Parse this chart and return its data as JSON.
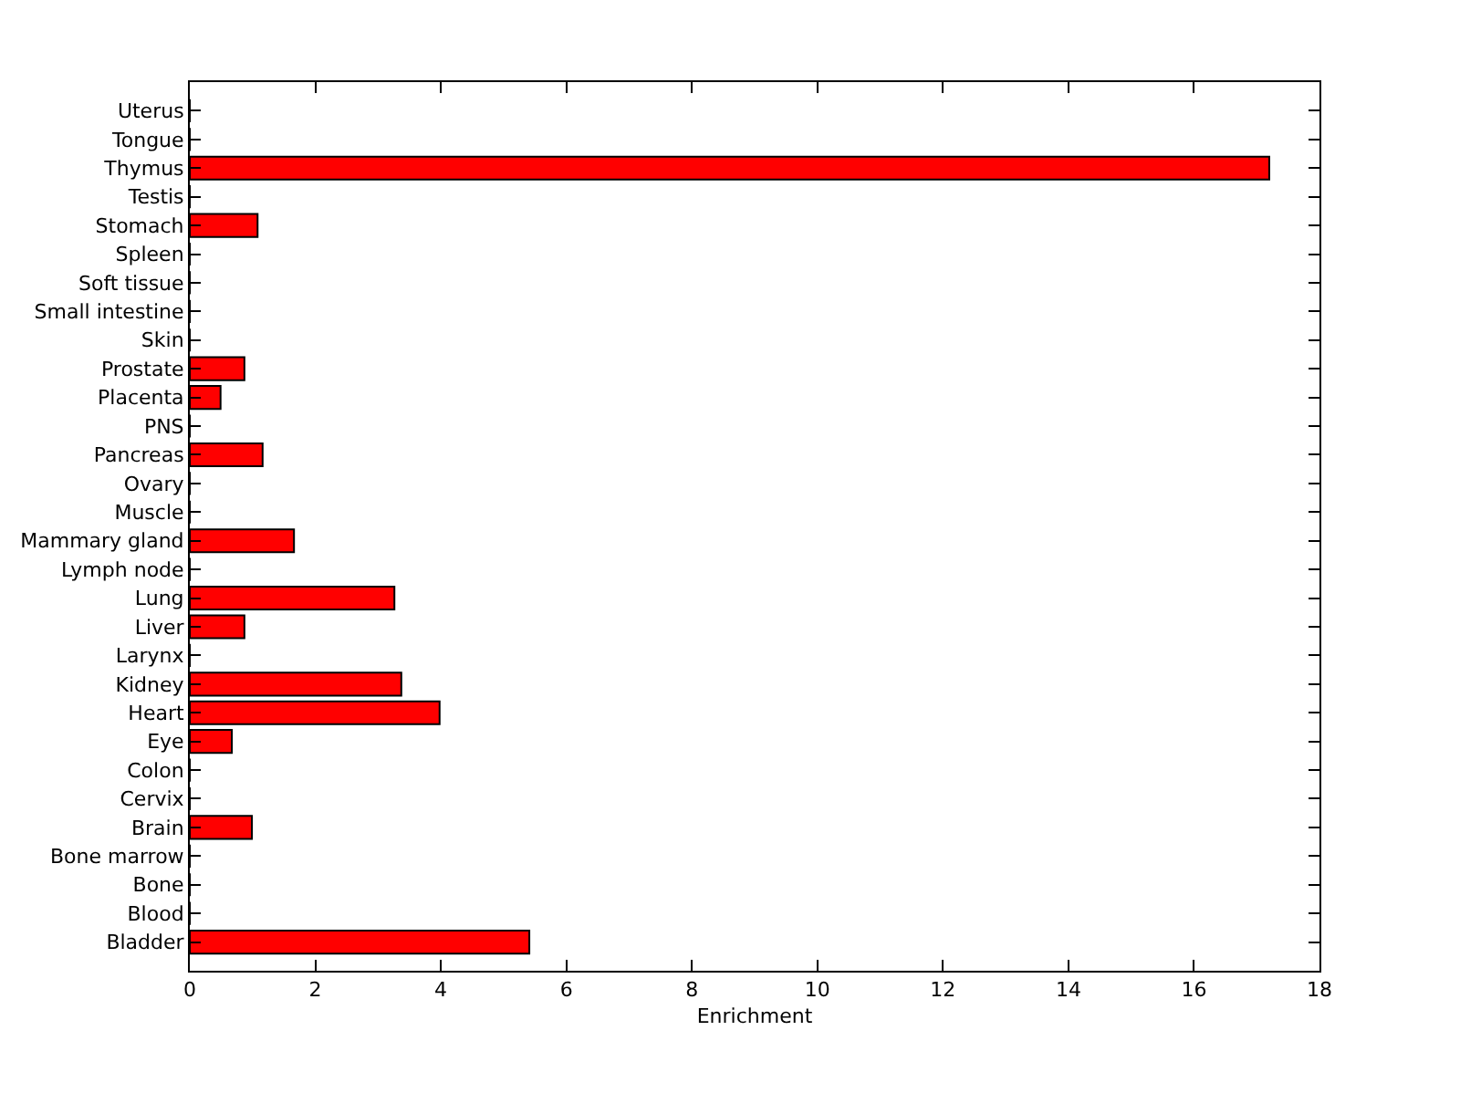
{
  "chart_data": {
    "type": "bar",
    "orientation": "horizontal",
    "xlabel": "Enrichment",
    "categories": [
      "Uterus",
      "Tongue",
      "Thymus",
      "Testis",
      "Stomach",
      "Spleen",
      "Soft tissue",
      "Small intestine",
      "Skin",
      "Prostate",
      "Placenta",
      "PNS",
      "Pancreas",
      "Ovary",
      "Muscle",
      "Mammary gland",
      "Lymph node",
      "Lung",
      "Liver",
      "Larynx",
      "Kidney",
      "Heart",
      "Eye",
      "Colon",
      "Cervix",
      "Brain",
      "Bone marrow",
      "Bone",
      "Blood",
      "Bladder"
    ],
    "values": [
      0,
      0,
      17.2,
      0,
      1.08,
      0,
      0,
      0,
      0,
      0.87,
      0.49,
      0,
      1.16,
      0,
      0,
      1.66,
      0,
      3.26,
      0.87,
      0,
      3.37,
      3.98,
      0.67,
      0,
      0,
      0.99,
      0,
      0,
      0,
      5.41
    ],
    "color": "#ff0000",
    "xlim": [
      0,
      18
    ],
    "xticks": [
      0,
      2,
      4,
      6,
      8,
      10,
      12,
      14,
      16,
      18
    ],
    "legend": false
  }
}
